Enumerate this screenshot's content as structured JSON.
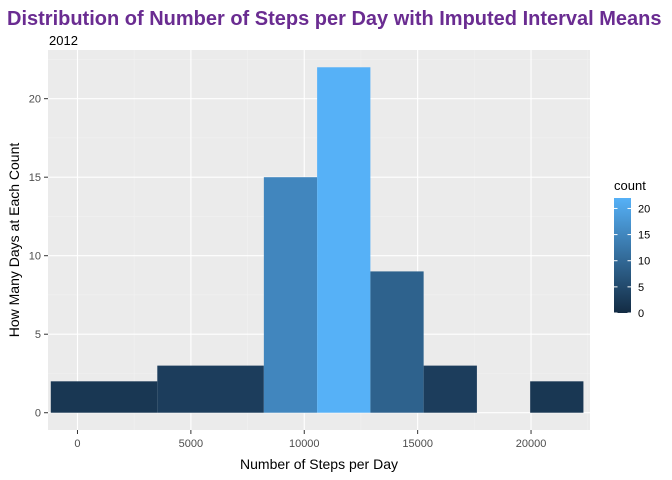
{
  "chart_data": {
    "type": "bar",
    "title": "Distribution of Number of Steps per Day with Imputed Interval Means",
    "subtitle": "2012",
    "xlabel": "Number of Steps per Day",
    "ylabel": "How Many Days at Each Count",
    "x_ticks": [
      0,
      5000,
      10000,
      15000,
      20000
    ],
    "y_ticks": [
      0,
      5,
      10,
      15,
      20
    ],
    "xlim": [
      -1300,
      22600
    ],
    "ylim": [
      -1.1,
      23.1
    ],
    "bins": [
      {
        "x0": -1177,
        "x1": 3520,
        "count": 2
      },
      {
        "x0": 3520,
        "x1": 8218,
        "count": 3
      },
      {
        "x0": 8218,
        "x1": 10567,
        "count": 15
      },
      {
        "x0": 10567,
        "x1": 12916,
        "count": 22
      },
      {
        "x0": 12916,
        "x1": 15264,
        "count": 9
      },
      {
        "x0": 15264,
        "x1": 17613,
        "count": 3
      },
      {
        "x0": 19962,
        "x1": 22310,
        "count": 2
      }
    ],
    "legend": {
      "title": "count",
      "ticks": [
        0,
        5,
        10,
        15,
        20
      ],
      "range": [
        0,
        22
      ],
      "low_color": "#132b43",
      "high_color": "#56b1f7",
      "position": "right"
    },
    "panel_background": "#ebebeb",
    "grid": true,
    "title_color": "#6a2c91"
  }
}
